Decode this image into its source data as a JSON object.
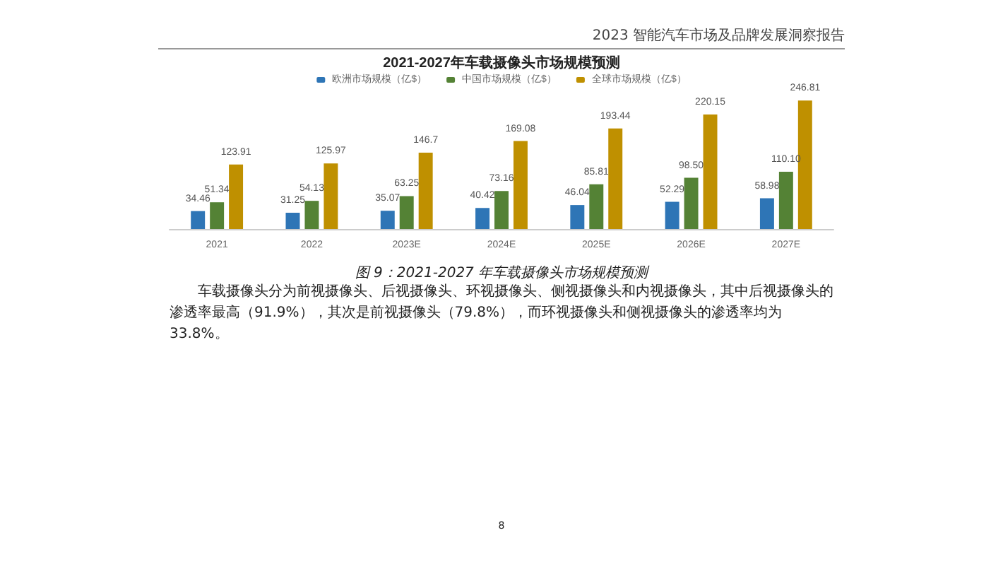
{
  "chart_data": {
    "type": "bar",
    "title": "2021-2027年车载摄像头市场规模预测",
    "categories": [
      "2021",
      "2022",
      "2023E",
      "2024E",
      "2025E",
      "2026E",
      "2027E"
    ],
    "series": [
      {
        "name": "欧洲市场规模（亿$）",
        "color": "#2e75b6",
        "values": [
          34.46,
          31.25,
          35.07,
          40.42,
          46.04,
          52.29,
          58.98
        ],
        "value_labels": [
          "34.46",
          "31.25",
          "35.07",
          "40.42",
          "46.04",
          "52.29",
          "58.98"
        ]
      },
      {
        "name": "中国市场规模（亿$）",
        "color": "#548235",
        "values": [
          51.34,
          54.13,
          63.25,
          73.16,
          85.81,
          98.5,
          110.1
        ],
        "value_labels": [
          "51.34",
          "54.13",
          "63.25",
          "73.16",
          "85.81",
          "98.50",
          "110.10"
        ]
      },
      {
        "name": "全球市场规模（亿$）",
        "color": "#bf9000",
        "values": [
          123.91,
          125.97,
          146.7,
          169.08,
          193.44,
          220.15,
          246.81
        ],
        "value_labels": [
          "123.91",
          "125.97",
          "146.7",
          "169.08",
          "193.44",
          "220.15",
          "246.81"
        ]
      }
    ],
    "legend": "top",
    "annotations": [
      "2023 智能汽车市场及品牌发展洞察报告",
      "图 9：2021-2027 年车载摄像头市场规模预测",
      "车载摄像头分为前视摄像头、后视摄像头、环视摄像头、侧视摄像头和内视摄像头，其中后视摄像头的渗透率最高（91.9%），其次是前视摄像头（79.8%），而环视摄像头和侧视摄像头的渗透率均为 33.8%。",
      "8"
    ]
  }
}
